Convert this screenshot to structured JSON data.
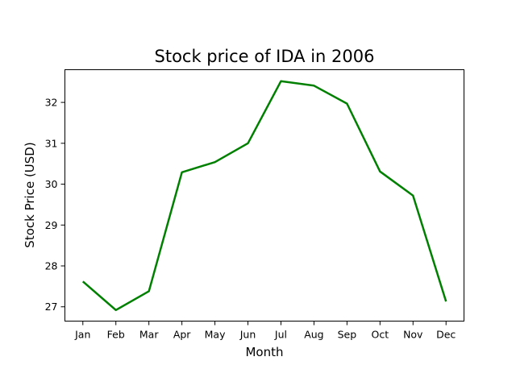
{
  "chart_data": {
    "type": "line",
    "title": "Stock price of IDA in 2006",
    "xlabel": "Month",
    "ylabel": "Stock Price (USD)",
    "categories": [
      "Jan",
      "Feb",
      "Mar",
      "Apr",
      "May",
      "Jun",
      "Jul",
      "Aug",
      "Sep",
      "Oct",
      "Nov",
      "Dec"
    ],
    "series": [
      {
        "values": [
          27.62,
          26.92,
          27.38,
          30.29,
          30.54,
          31.0,
          32.52,
          32.41,
          31.97,
          30.31,
          29.72,
          27.13
        ],
        "color": "#008000"
      }
    ],
    "yticks": [
      27,
      28,
      29,
      30,
      31,
      32
    ],
    "ylim": [
      26.65,
      32.8
    ],
    "grid": false,
    "legend": "none"
  }
}
